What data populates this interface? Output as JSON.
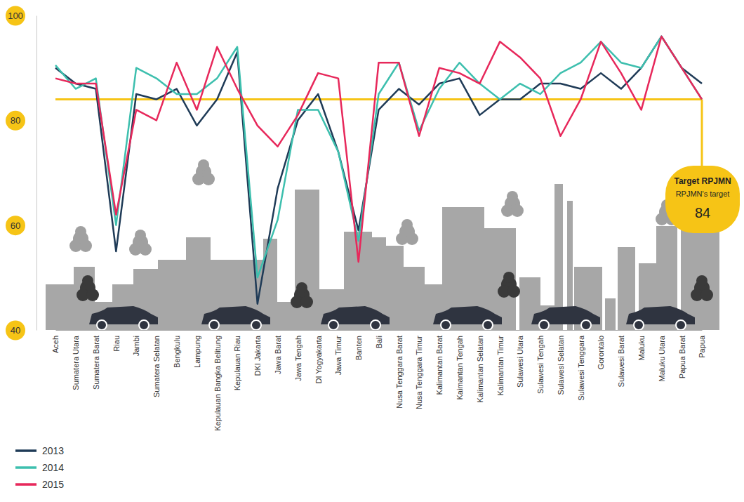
{
  "chart_data": {
    "type": "line",
    "categories": [
      "Aceh",
      "Sumatera Utara",
      "Sumatera Barat",
      "Riau",
      "Jambi",
      "Sumatera Selatan",
      "Bengkulu",
      "Lampung",
      "Kepulauan Bangka Belitung",
      "Kepulauan Riau",
      "DKI Jakarta",
      "Jawa Barat",
      "Jawa Tengah",
      "DI Yogyakarta",
      "Jawa Timur",
      "Banten",
      "Bali",
      "Nusa Tenggara Barat",
      "Nusa Tenggara Timur",
      "Kalimantan Barat",
      "Kaimantan Tengah",
      "Kalimantan Selatan",
      "Kalimantan Timur",
      "Sulawesi Utara",
      "Sulawesi Tengah",
      "Sulawesi Selatan",
      "Sulawesi Tenggara",
      "Gorontalo",
      "Sulawesi Barat",
      "Maluku",
      "Maluku Utara",
      "Papua Barat",
      "Papua"
    ],
    "series": [
      {
        "name": "2013",
        "color": "#1f3b57",
        "values": [
          90,
          87,
          86,
          55,
          85,
          84,
          86,
          79,
          84,
          93,
          45,
          67,
          80,
          85,
          74,
          59,
          82,
          86,
          83,
          87,
          88,
          81,
          84,
          84,
          87,
          87,
          86,
          89,
          86,
          90,
          96,
          90,
          87
        ]
      },
      {
        "name": "2014",
        "color": "#3dbfae",
        "values": [
          90.5,
          86,
          88,
          60,
          90,
          88,
          85,
          85,
          88,
          94,
          50,
          61,
          82,
          82,
          74,
          57,
          85,
          91,
          78,
          86,
          91,
          87,
          84,
          87,
          85,
          89,
          91,
          95,
          91,
          90,
          96,
          90,
          84
        ]
      },
      {
        "name": "2015",
        "color": "#e7285b",
        "values": [
          88,
          87,
          87,
          62,
          82,
          80,
          91,
          82,
          94,
          86,
          79,
          75,
          81,
          89,
          88,
          53,
          91,
          91,
          77,
          90,
          89,
          87,
          95,
          92,
          88,
          77,
          84,
          95,
          89,
          82,
          96,
          90,
          84
        ]
      }
    ],
    "ylim": [
      40,
      100
    ],
    "yticks": [
      40,
      60,
      80,
      100
    ],
    "grid": false,
    "legend": "bottom-left",
    "target": {
      "value": 84,
      "label": "Target RPJMN",
      "sublabel": "RPJMN's target"
    }
  }
}
